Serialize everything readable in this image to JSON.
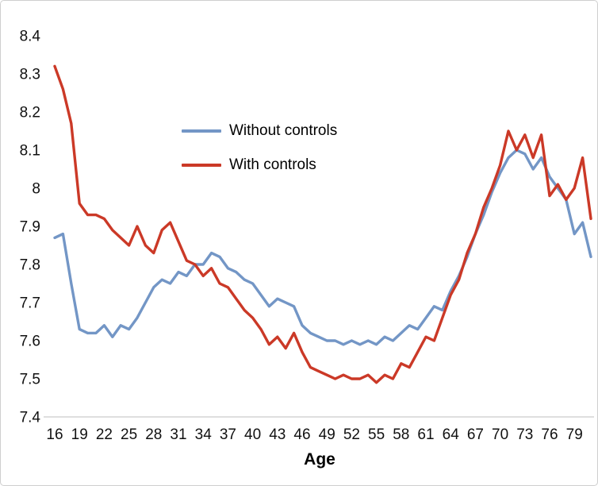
{
  "figure": {
    "background": "#ffffff",
    "border_color": "#cfcfcf",
    "axis_line_color": "#bfbfbf"
  },
  "chart_data": {
    "type": "line",
    "title": "",
    "xlabel": "Age",
    "ylabel": "",
    "grid": false,
    "legend_position": "inside-upper-left",
    "xlim": [
      16,
      81
    ],
    "ylim": [
      7.4,
      8.4
    ],
    "x_ticks": [
      16,
      19,
      22,
      25,
      28,
      31,
      34,
      37,
      40,
      43,
      46,
      49,
      52,
      55,
      58,
      61,
      64,
      67,
      70,
      73,
      76,
      79
    ],
    "y_ticks": [
      {
        "value": 7.4,
        "label": "7.4"
      },
      {
        "value": 7.5,
        "label": "7.5"
      },
      {
        "value": 7.6,
        "label": "7.6"
      },
      {
        "value": 7.7,
        "label": "7.7"
      },
      {
        "value": 7.8,
        "label": "7.8"
      },
      {
        "value": 7.9,
        "label": "7.9"
      },
      {
        "value": 8.0,
        "label": "8"
      },
      {
        "value": 8.1,
        "label": "8.1"
      },
      {
        "value": 8.2,
        "label": "8.2"
      },
      {
        "value": 8.3,
        "label": "8.3"
      },
      {
        "value": 8.4,
        "label": "8.4"
      }
    ],
    "x": [
      16,
      17,
      18,
      19,
      20,
      21,
      22,
      23,
      24,
      25,
      26,
      27,
      28,
      29,
      30,
      31,
      32,
      33,
      34,
      35,
      36,
      37,
      38,
      39,
      40,
      41,
      42,
      43,
      44,
      45,
      46,
      47,
      48,
      49,
      50,
      51,
      52,
      53,
      54,
      55,
      56,
      57,
      58,
      59,
      60,
      61,
      62,
      63,
      64,
      65,
      66,
      67,
      68,
      69,
      70,
      71,
      72,
      73,
      74,
      75,
      76,
      77,
      78,
      79,
      80,
      81
    ],
    "series": [
      {
        "name": "Without controls",
        "color": "#7396C6",
        "values": [
          7.87,
          7.88,
          7.75,
          7.63,
          7.62,
          7.62,
          7.64,
          7.61,
          7.64,
          7.63,
          7.66,
          7.7,
          7.74,
          7.76,
          7.75,
          7.78,
          7.77,
          7.8,
          7.8,
          7.83,
          7.82,
          7.79,
          7.78,
          7.76,
          7.75,
          7.72,
          7.69,
          7.71,
          7.7,
          7.69,
          7.64,
          7.62,
          7.61,
          7.6,
          7.6,
          7.59,
          7.6,
          7.59,
          7.6,
          7.59,
          7.61,
          7.6,
          7.62,
          7.64,
          7.63,
          7.66,
          7.69,
          7.68,
          7.73,
          7.77,
          7.82,
          7.88,
          7.93,
          7.99,
          8.04,
          8.08,
          8.1,
          8.09,
          8.05,
          8.08,
          8.03,
          8.0,
          7.97,
          7.88,
          7.91,
          7.82
        ]
      },
      {
        "name": "With controls",
        "color": "#CB3927",
        "values": [
          8.32,
          8.26,
          8.17,
          7.96,
          7.93,
          7.93,
          7.92,
          7.89,
          7.87,
          7.85,
          7.9,
          7.85,
          7.83,
          7.89,
          7.91,
          7.86,
          7.81,
          7.8,
          7.77,
          7.79,
          7.75,
          7.74,
          7.71,
          7.68,
          7.66,
          7.63,
          7.59,
          7.61,
          7.58,
          7.62,
          7.57,
          7.53,
          7.52,
          7.51,
          7.5,
          7.51,
          7.5,
          7.5,
          7.51,
          7.49,
          7.51,
          7.5,
          7.54,
          7.53,
          7.57,
          7.61,
          7.6,
          7.66,
          7.72,
          7.76,
          7.83,
          7.88,
          7.95,
          8.0,
          8.06,
          8.15,
          8.1,
          8.14,
          8.08,
          8.14,
          7.98,
          8.01,
          7.97,
          8.0,
          8.08,
          7.92
        ]
      }
    ]
  }
}
